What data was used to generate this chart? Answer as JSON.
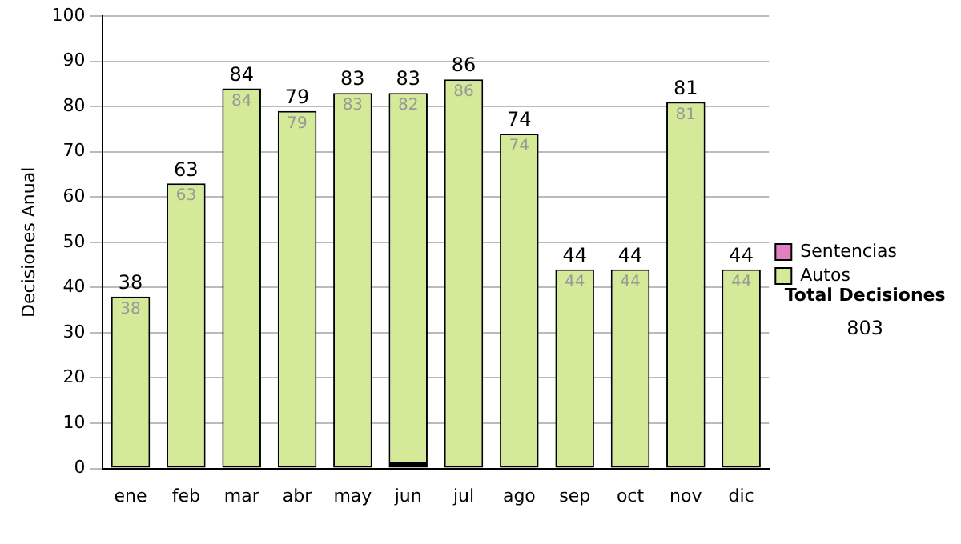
{
  "chart_data": {
    "type": "bar",
    "stacked": true,
    "ylabel": "Decisiones Anual",
    "categories": [
      "ene",
      "feb",
      "mar",
      "abr",
      "may",
      "jun",
      "jul",
      "ago",
      "sep",
      "oct",
      "nov",
      "dic"
    ],
    "series": [
      {
        "name": "Sentencias",
        "color": "#e080c0",
        "values": [
          0,
          0,
          0,
          0,
          0,
          1,
          0,
          0,
          0,
          0,
          0,
          0
        ]
      },
      {
        "name": "Autos",
        "color": "#d4ea98",
        "values": [
          38,
          63,
          84,
          79,
          83,
          82,
          86,
          74,
          44,
          44,
          81,
          44
        ],
        "value_labels": [
          "38",
          "63",
          "84",
          "79",
          "83",
          "82",
          "86",
          "74",
          "44",
          "44",
          "81",
          "44"
        ]
      }
    ],
    "totals": [
      "38",
      "63",
      "84",
      "79",
      "83",
      "83",
      "86",
      "74",
      "44",
      "44",
      "81",
      "44"
    ],
    "ylim": [
      0,
      100
    ],
    "yticks": [
      0,
      10,
      20,
      30,
      40,
      50,
      60,
      70,
      80,
      90,
      100
    ],
    "grid": "y",
    "legend": "right",
    "annotations": [
      "Total Decisiones",
      "803"
    ]
  }
}
